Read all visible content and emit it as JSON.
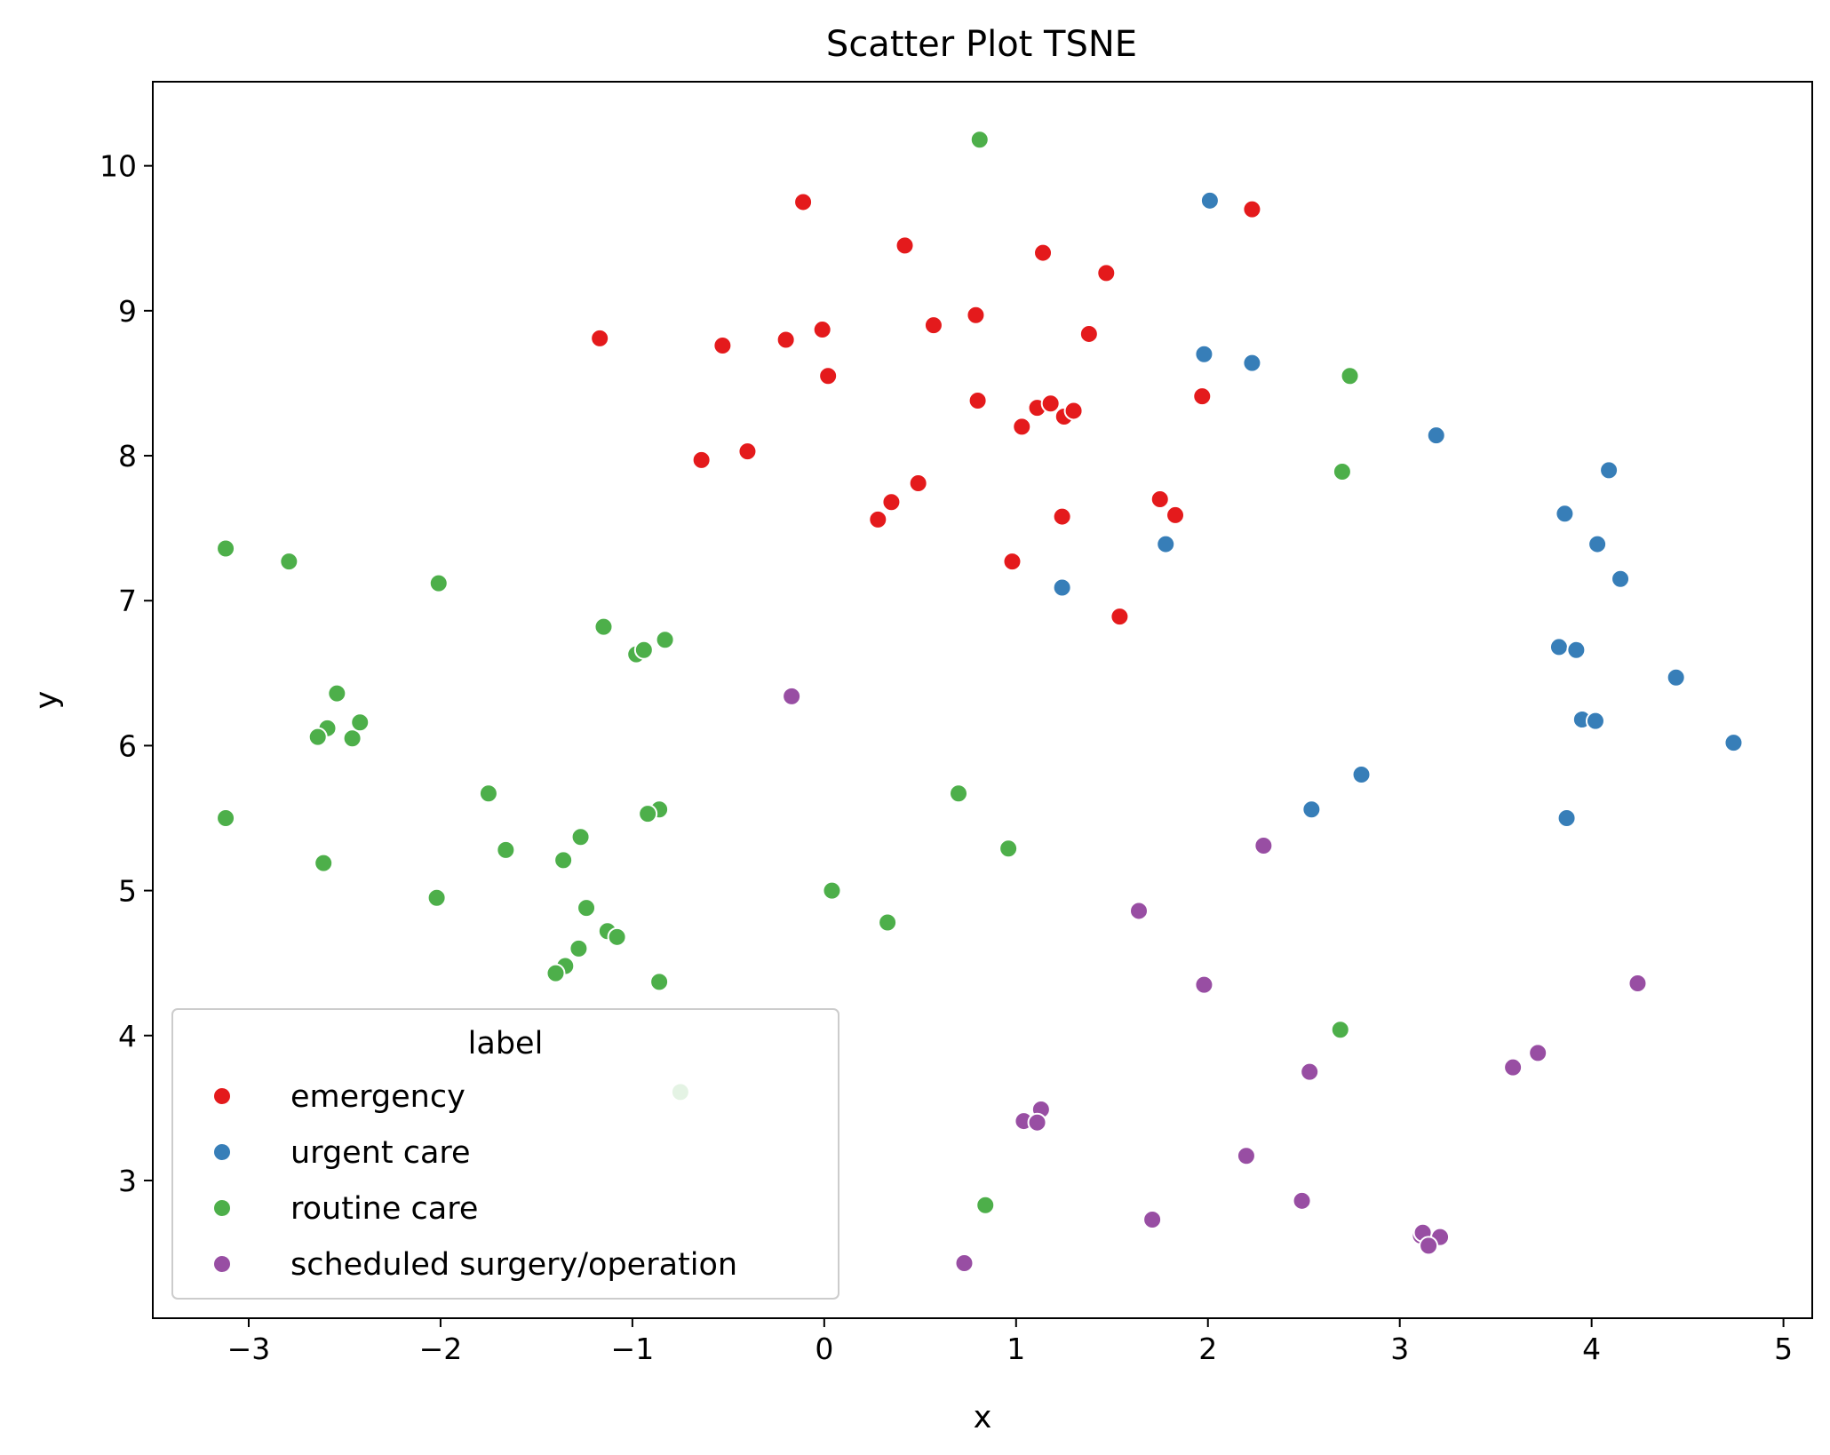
{
  "chart_data": {
    "type": "scatter",
    "title": "Scatter Plot TSNE",
    "xlabel": "x",
    "ylabel": "y",
    "xlim": [
      -3.5,
      5.15
    ],
    "ylim": [
      2.05,
      10.58
    ],
    "xticks": [
      -3,
      -2,
      -1,
      0,
      1,
      2,
      3,
      4,
      5
    ],
    "yticks": [
      3,
      4,
      5,
      6,
      7,
      8,
      9,
      10
    ],
    "xtick_labels": [
      "−3",
      "−2",
      "−1",
      "0",
      "1",
      "2",
      "3",
      "4",
      "5"
    ],
    "ytick_labels": [
      "3",
      "4",
      "5",
      "6",
      "7",
      "8",
      "9",
      "10"
    ],
    "grid": false,
    "legend": {
      "title": "label",
      "placement": "lower-left"
    },
    "series": [
      {
        "name": "emergency",
        "color": "#e41a1c",
        "points": [
          [
            -0.11,
            9.75
          ],
          [
            2.23,
            9.7
          ],
          [
            0.42,
            9.45
          ],
          [
            1.14,
            9.4
          ],
          [
            1.47,
            9.26
          ],
          [
            -1.17,
            8.81
          ],
          [
            -0.53,
            8.76
          ],
          [
            -0.2,
            8.8
          ],
          [
            -0.01,
            8.87
          ],
          [
            0.57,
            8.9
          ],
          [
            0.79,
            8.97
          ],
          [
            1.38,
            8.84
          ],
          [
            0.02,
            8.55
          ],
          [
            0.8,
            8.38
          ],
          [
            1.11,
            8.33
          ],
          [
            1.18,
            8.36
          ],
          [
            1.25,
            8.27
          ],
          [
            1.3,
            8.31
          ],
          [
            1.03,
            8.2
          ],
          [
            1.97,
            8.41
          ],
          [
            -0.64,
            7.97
          ],
          [
            -0.4,
            8.03
          ],
          [
            0.49,
            7.81
          ],
          [
            0.35,
            7.68
          ],
          [
            0.28,
            7.56
          ],
          [
            1.24,
            7.58
          ],
          [
            1.75,
            7.7
          ],
          [
            1.83,
            7.59
          ],
          [
            0.98,
            7.27
          ],
          [
            1.54,
            6.89
          ]
        ]
      },
      {
        "name": "urgent care",
        "color": "#377eb8",
        "points": [
          [
            2.01,
            9.76
          ],
          [
            1.98,
            8.7
          ],
          [
            2.23,
            8.64
          ],
          [
            3.19,
            8.14
          ],
          [
            4.09,
            7.9
          ],
          [
            3.86,
            7.6
          ],
          [
            4.03,
            7.39
          ],
          [
            1.78,
            7.39
          ],
          [
            4.15,
            7.15
          ],
          [
            1.24,
            7.09
          ],
          [
            3.83,
            6.68
          ],
          [
            3.92,
            6.66
          ],
          [
            4.44,
            6.47
          ],
          [
            3.95,
            6.18
          ],
          [
            4.02,
            6.17
          ],
          [
            4.74,
            6.02
          ],
          [
            2.8,
            5.8
          ],
          [
            2.54,
            5.56
          ],
          [
            3.87,
            5.5
          ]
        ]
      },
      {
        "name": "routine care",
        "color": "#4daf4a",
        "points": [
          [
            0.81,
            10.18
          ],
          [
            2.74,
            8.55
          ],
          [
            2.7,
            7.89
          ],
          [
            -3.12,
            7.36
          ],
          [
            -2.79,
            7.27
          ],
          [
            -2.01,
            7.12
          ],
          [
            -1.15,
            6.82
          ],
          [
            -0.83,
            6.73
          ],
          [
            -0.98,
            6.63
          ],
          [
            -0.94,
            6.66
          ],
          [
            -2.54,
            6.36
          ],
          [
            -2.59,
            6.12
          ],
          [
            -2.64,
            6.06
          ],
          [
            -2.46,
            6.05
          ],
          [
            -2.42,
            6.16
          ],
          [
            -1.75,
            5.67
          ],
          [
            0.7,
            5.67
          ],
          [
            -0.86,
            5.56
          ],
          [
            -0.92,
            5.53
          ],
          [
            -3.12,
            5.5
          ],
          [
            -1.27,
            5.37
          ],
          [
            -1.66,
            5.28
          ],
          [
            0.96,
            5.29
          ],
          [
            -1.36,
            5.21
          ],
          [
            -2.61,
            5.19
          ],
          [
            0.04,
            5.0
          ],
          [
            -2.02,
            4.95
          ],
          [
            -1.24,
            4.88
          ],
          [
            0.33,
            4.78
          ],
          [
            -1.13,
            4.72
          ],
          [
            -1.08,
            4.68
          ],
          [
            -1.28,
            4.6
          ],
          [
            -1.35,
            4.48
          ],
          [
            -1.4,
            4.43
          ],
          [
            -0.86,
            4.37
          ],
          [
            2.69,
            4.04
          ],
          [
            -0.75,
            3.61
          ],
          [
            0.84,
            2.83
          ]
        ]
      },
      {
        "name": "scheduled surgery/operation",
        "color": "#984ea3",
        "points": [
          [
            -0.17,
            6.34
          ],
          [
            2.29,
            5.31
          ],
          [
            1.64,
            4.86
          ],
          [
            1.98,
            4.35
          ],
          [
            4.24,
            4.36
          ],
          [
            3.72,
            3.88
          ],
          [
            3.59,
            3.78
          ],
          [
            2.53,
            3.75
          ],
          [
            1.13,
            3.49
          ],
          [
            1.04,
            3.41
          ],
          [
            1.11,
            3.4
          ],
          [
            2.2,
            3.17
          ],
          [
            2.49,
            2.86
          ],
          [
            1.71,
            2.73
          ],
          [
            3.11,
            2.62
          ],
          [
            3.12,
            2.64
          ],
          [
            3.21,
            2.61
          ],
          [
            3.15,
            2.55
          ],
          [
            0.73,
            2.43
          ]
        ]
      }
    ]
  }
}
